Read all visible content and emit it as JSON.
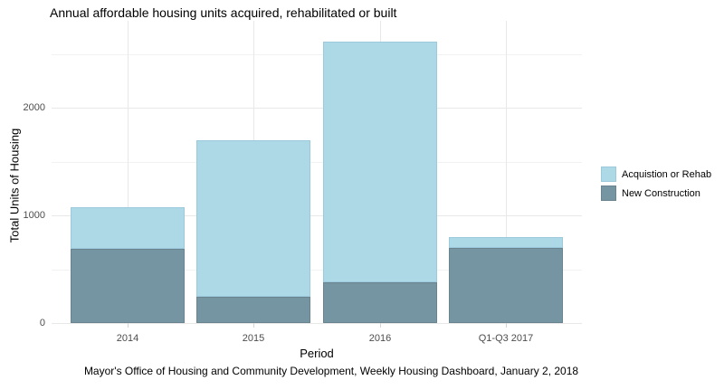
{
  "chart_data": {
    "type": "bar",
    "stacked": true,
    "title": "Annual affordable housing units acquired, rehabilitated or built",
    "xlabel": "Period",
    "ylabel": "Total Units of Housing",
    "caption": "Mayor's Office of Housing and Community Development, Weekly Housing Dashboard, January 2, 2018",
    "categories": [
      "2014",
      "2015",
      "2016",
      "Q1-Q3 2017"
    ],
    "series": [
      {
        "name": "Acquistion or Rehab",
        "values": [
          390,
          1460,
          2240,
          100
        ],
        "color": "#ADD8E6",
        "border_color": "#9CC9DB"
      },
      {
        "name": "New Construction",
        "values": [
          690,
          240,
          380,
          700
        ],
        "color": "#7695A2",
        "border_color": "#69848F"
      }
    ],
    "stack_order_note": "New Construction on bottom, Acquistion or Rehab stacked on top",
    "totals": [
      1080,
      1700,
      2620,
      800
    ],
    "ylim": [
      0,
      2810
    ],
    "yticks_major": [
      0,
      1000,
      2000
    ],
    "yticks_minor": [
      500,
      1500,
      2500
    ],
    "grid": true,
    "legend_position": "right",
    "colors": {
      "background": "#ffffff",
      "grid_major": "#e8e8e8",
      "grid_minor": "#f2f2f2",
      "tick_text": "#4d4d4d",
      "text": "#000000"
    }
  }
}
